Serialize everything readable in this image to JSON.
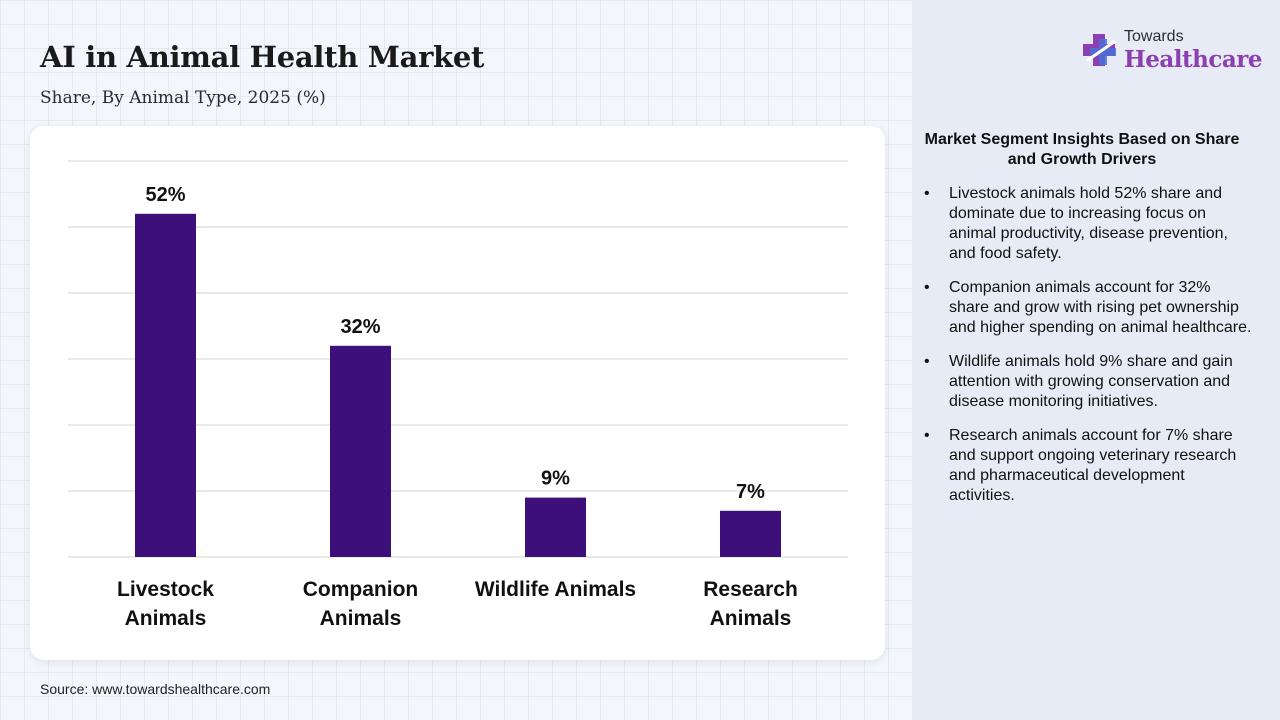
{
  "header": {
    "title": "AI in Animal Health Market",
    "subtitle": "Share, By Animal Type, 2025 (%)"
  },
  "logo": {
    "top_text": "Towards",
    "main_text": "Healthcare"
  },
  "chart_data": {
    "type": "bar",
    "categories": [
      [
        "Livestock",
        "Animals"
      ],
      [
        "Companion",
        "Animals"
      ],
      [
        "Wildlife Animals"
      ],
      [
        "Research",
        "Animals"
      ]
    ],
    "values": [
      52,
      32,
      9,
      7
    ],
    "value_labels": [
      "52%",
      "32%",
      "9%",
      "7%"
    ],
    "ylim": [
      0,
      60
    ],
    "grid": true,
    "bar_color": "#3d0f7a",
    "gridline_color": "#d4d4d4"
  },
  "insights": {
    "title": "Market Segment Insights Based on Share and Growth Drivers",
    "items": [
      "Livestock animals hold 52% share and dominate due to increasing focus on animal productivity, disease prevention, and food safety.",
      "Companion animals account for 32% share and grow with rising pet ownership and higher spending on animal healthcare.",
      "Wildlife animals hold 9% share and gain attention with growing conservation and disease monitoring initiatives.",
      "Research animals account for 7% share and support ongoing veterinary research and pharmaceutical development activities."
    ]
  },
  "source": "Source: www.towardshealthcare.com"
}
